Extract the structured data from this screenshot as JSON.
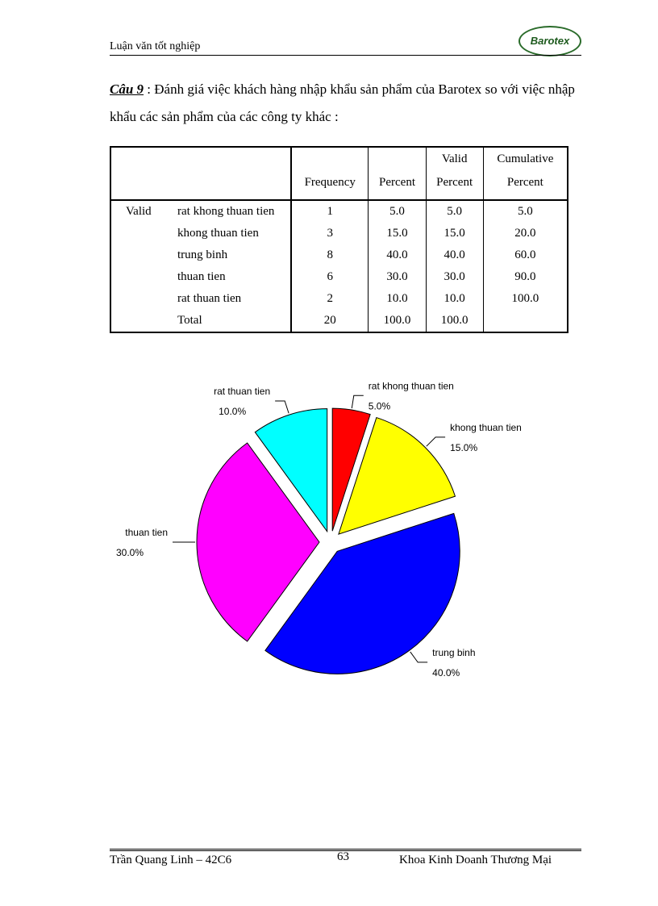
{
  "header": {
    "title": "Luận văn tốt nghiệp",
    "logo": "Barotex"
  },
  "question": {
    "label": "Câu 9",
    "text": ": Đánh giá việc khách hàng nhập khẩu sản phẩm của Barotex so với việc nhập khẩu các sản phẩm của các công ty khác :"
  },
  "table": {
    "columns": [
      [
        "Frequency"
      ],
      [
        "Percent"
      ],
      [
        "Valid",
        "Percent"
      ],
      [
        "Cumulative",
        "Percent"
      ]
    ],
    "group": "Valid",
    "rows": [
      [
        "rat khong thuan tien",
        "1",
        "5.0",
        "5.0",
        "5.0"
      ],
      [
        "khong thuan tien",
        "3",
        "15.0",
        "15.0",
        "20.0"
      ],
      [
        "trung binh",
        "8",
        "40.0",
        "40.0",
        "60.0"
      ],
      [
        "thuan tien",
        "6",
        "30.0",
        "30.0",
        "90.0"
      ],
      [
        "rat thuan tien",
        "2",
        "10.0",
        "10.0",
        "100.0"
      ],
      [
        "Total",
        "20",
        "100.0",
        "100.0"
      ]
    ]
  },
  "chart_data": {
    "type": "pie",
    "categories": [
      "rat khong thuan tien",
      "khong thuan tien",
      "trung binh",
      "thuan tien",
      "rat thuan tien"
    ],
    "values": [
      5,
      15,
      40,
      30,
      10
    ],
    "value_labels": [
      "5.0%",
      "15.0%",
      "40.0%",
      "30.0%",
      "10.0%"
    ],
    "colors": [
      "#ff0000",
      "#ffff00",
      "#0000ff",
      "#ff00ff",
      "#00ffff"
    ],
    "exploded": true
  },
  "footer": {
    "author": "Trần Quang Linh – 42C6",
    "page": "63",
    "faculty": "Khoa Kinh Doanh Thương Mại"
  }
}
